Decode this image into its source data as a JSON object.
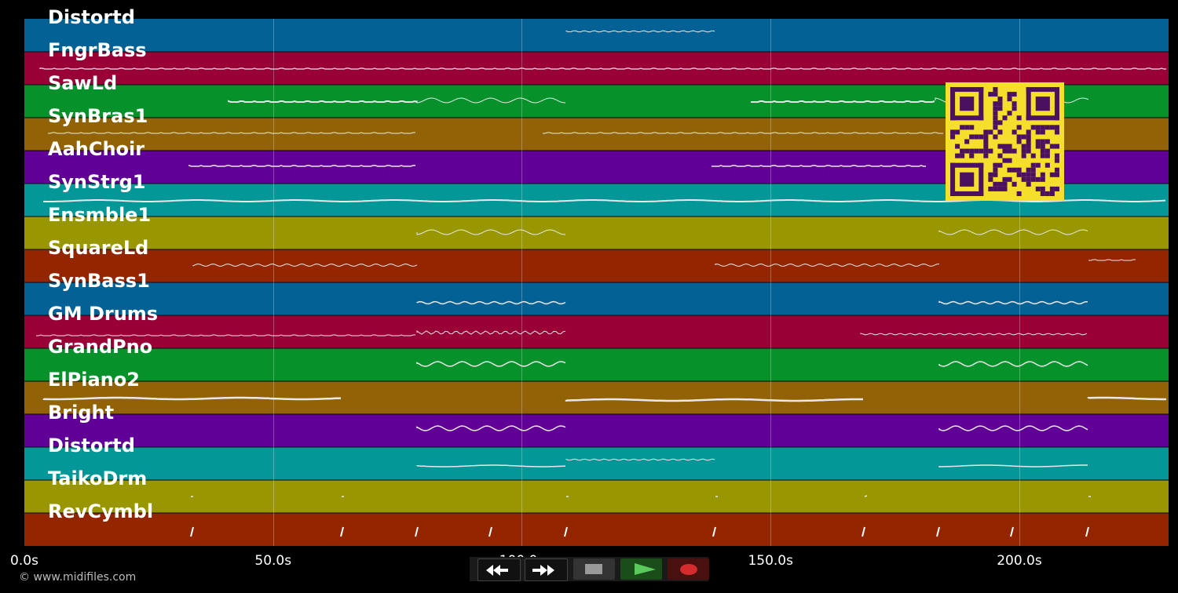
{
  "tracks": [
    {
      "name": "Distortd",
      "color": "#046195"
    },
    {
      "name": "FngrBass",
      "color": "#980036"
    },
    {
      "name": "SawLd",
      "color": "#06912b"
    },
    {
      "name": "SynBras1",
      "color": "#916306"
    },
    {
      "name": "AahChoir",
      "color": "#610096"
    },
    {
      "name": "SynStrg1",
      "color": "#039897"
    },
    {
      "name": "Ensmble1",
      "color": "#989701"
    },
    {
      "name": "SquareLd",
      "color": "#932500"
    },
    {
      "name": "SynBass1",
      "color": "#046195"
    },
    {
      "name": "GM Drums",
      "color": "#980036"
    },
    {
      "name": "GrandPno",
      "color": "#06912b"
    },
    {
      "name": "ElPiano2",
      "color": "#916306"
    },
    {
      "name": "Bright",
      "color": "#610096"
    },
    {
      "name": "Distortd",
      "color": "#039897"
    },
    {
      "name": "TaikoDrm",
      "color": "#989701"
    },
    {
      "name": "RevCymbl",
      "color": "#932500"
    }
  ],
  "timeline": {
    "max_seconds": 230,
    "ticks": [
      {
        "label": "0.0s",
        "value": 0
      },
      {
        "label": "50.0s",
        "value": 50
      },
      {
        "label": "100.0s",
        "value": 100
      },
      {
        "label": "150.0s",
        "value": 150
      },
      {
        "label": "200.0s",
        "value": 200
      }
    ]
  },
  "copyright": "© www.midifiles.com",
  "transport": {
    "rewind_icon": "rewind-icon",
    "fast_forward_icon": "fast-forward-icon",
    "stop_icon": "stop-icon",
    "play_icon": "play-icon",
    "record_icon": "record-icon",
    "play_color": "#5bc85b",
    "record_color": "#d42c2c"
  },
  "qr_code": {
    "foreground": "#4b1060",
    "background": "#f5de2c"
  }
}
